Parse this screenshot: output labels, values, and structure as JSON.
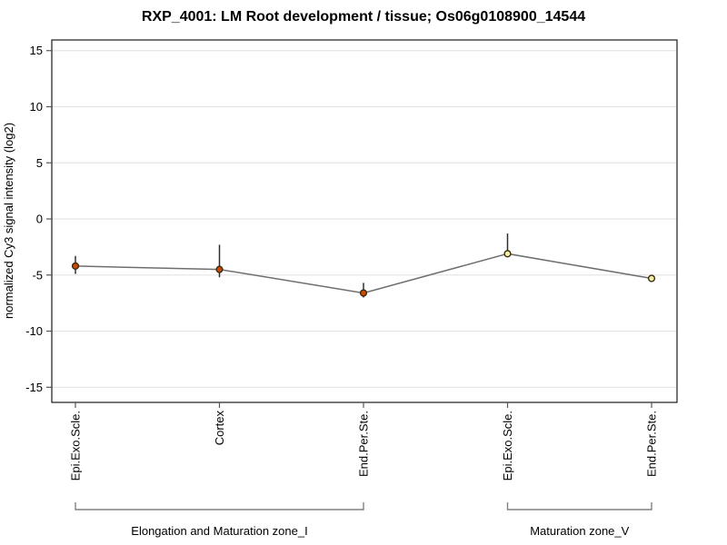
{
  "chart_data": {
    "type": "line",
    "title": "RXP_4001: LM Root development / tissue; Os06g0108900_14544",
    "ylabel": "normalized Cy3 signal intensity (log2)",
    "xlabel": "",
    "ylim": [
      -16.35,
      15.95
    ],
    "yticks": [
      15,
      10,
      5,
      0,
      -5,
      -10,
      -15
    ],
    "grid": "horizontal-only",
    "legend": "none",
    "categories": [
      "Epi.Exo.Scle.",
      "Cortex",
      "End.Per.Ste.",
      "Epi.Exo.Scle.",
      "End.Per.Ste."
    ],
    "values": [
      -4.2,
      -4.5,
      -6.6,
      -3.1,
      -5.3
    ],
    "error_high": [
      -3.3,
      -2.3,
      -5.7,
      -1.3,
      -5.1
    ],
    "error_low": [
      -4.9,
      -5.2,
      -7.0,
      -3.4,
      -5.5
    ],
    "marker_colors": [
      "#cc4a02",
      "#cc4a02",
      "#cc4a02",
      "#f2efa6",
      "#f2efa6"
    ],
    "marker_stroke": "#3c2a10",
    "line_color": "#6e6e6e",
    "error_bar_color": "#2f2f2f",
    "grid_color": "#e4e4e4",
    "frame_color": "#1a1a1a",
    "tick_color": "#555555",
    "bracket_color": "#808080",
    "groups": [
      {
        "label": "Elongation and Maturation zone_I",
        "start": 0,
        "end": 2
      },
      {
        "label": "Maturation zone_V",
        "start": 3,
        "end": 4
      }
    ]
  }
}
